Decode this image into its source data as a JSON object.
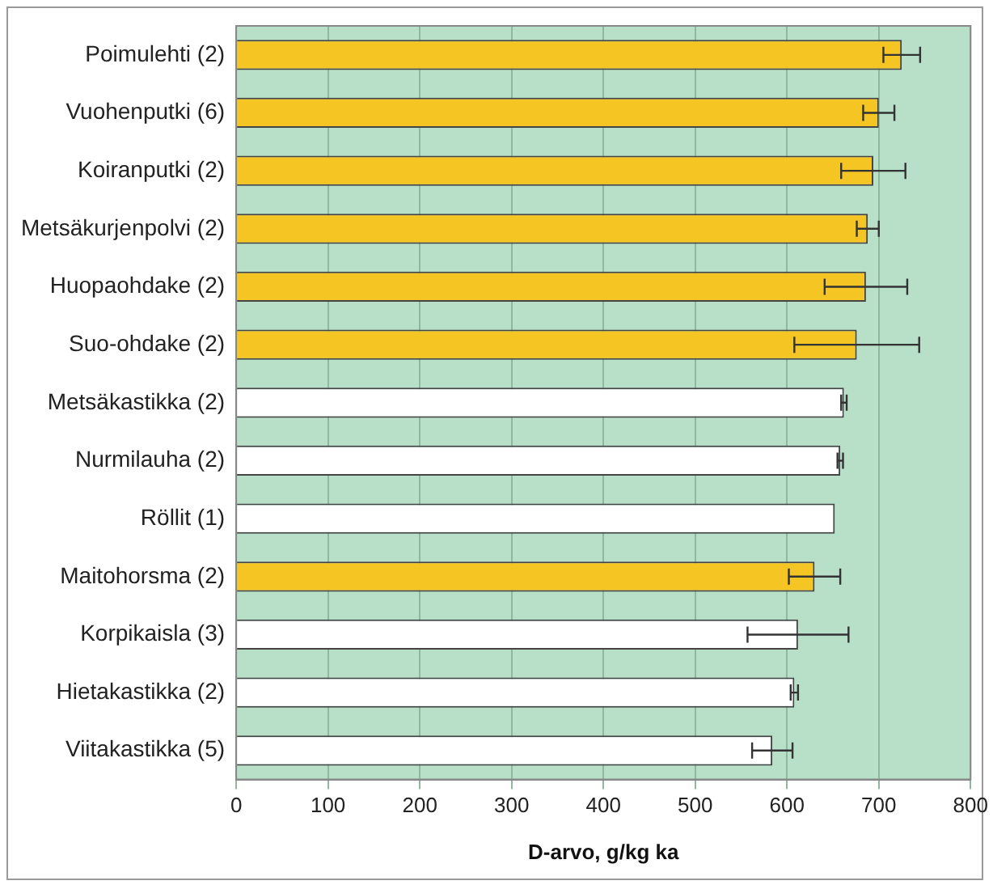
{
  "chart_data": {
    "type": "bar",
    "orientation": "horizontal",
    "xlabel": "D-arvo, g/kg ka",
    "categories": [
      "Poimulehti (2)",
      "Vuohenputki (6)",
      "Koiranputki (2)",
      "Metsäkurjenpolvi (2)",
      "Huopaohdake (2)",
      "Suo-ohdake (2)",
      "Metsäkastikka (2)",
      "Nurmilauha (2)",
      "Röllit (1)",
      "Maitohorsma (2)",
      "Korpikaisla (3)",
      "Hietakastikka (2)",
      "Viitakastikka (5)"
    ],
    "values": [
      725,
      700,
      694,
      688,
      686,
      676,
      662,
      658,
      652,
      630,
      612,
      608,
      584
    ],
    "errors": [
      20,
      17,
      35,
      12,
      45,
      68,
      3,
      3,
      null,
      28,
      55,
      4,
      22
    ],
    "colors": [
      "#f5c623",
      "#f5c623",
      "#f5c623",
      "#f5c623",
      "#f5c623",
      "#f5c623",
      "#ffffff",
      "#ffffff",
      "#ffffff",
      "#f5c623",
      "#ffffff",
      "#ffffff",
      "#ffffff"
    ],
    "xlim": [
      0,
      800
    ],
    "xticks": [
      0,
      100,
      200,
      300,
      400,
      500,
      600,
      700,
      800
    ],
    "grid": "x",
    "legend": false
  }
}
